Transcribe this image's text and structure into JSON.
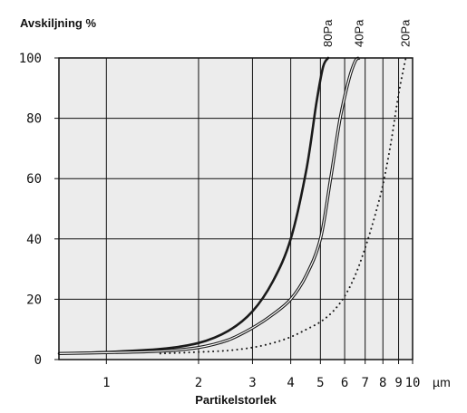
{
  "chart_data": {
    "type": "line",
    "ylabel": "Avskiljning %",
    "xlabel": "Partikelstorlek",
    "x_unit": "µm",
    "x_scale": "log",
    "xlim": [
      0.7,
      10
    ],
    "ylim": [
      0,
      100
    ],
    "x_ticks": [
      1,
      2,
      3,
      4,
      5,
      6,
      7,
      8,
      9,
      10
    ],
    "x_tick_labels": [
      "1",
      "2",
      "3",
      "4",
      "5",
      "6",
      "7",
      "8",
      "9",
      "10"
    ],
    "y_ticks": [
      0,
      20,
      40,
      60,
      80,
      100
    ],
    "y_tick_labels": [
      "0",
      "20",
      "40",
      "60",
      "80",
      "100"
    ],
    "grid": true,
    "plot_background": "#ececec",
    "series": [
      {
        "name": "80Pa",
        "style": "thick",
        "color": "#1a1a1a",
        "points": [
          [
            0.7,
            2
          ],
          [
            1,
            2.5
          ],
          [
            1.5,
            3.5
          ],
          [
            2,
            5.5
          ],
          [
            2.5,
            9.5
          ],
          [
            3,
            16
          ],
          [
            3.5,
            26
          ],
          [
            4,
            40
          ],
          [
            4.5,
            63
          ],
          [
            4.85,
            85
          ],
          [
            5.1,
            97
          ],
          [
            5.3,
            100
          ]
        ]
      },
      {
        "name": "40Pa",
        "style": "double",
        "color": "#1a1a1a",
        "points": [
          [
            0.7,
            2
          ],
          [
            1,
            2.3
          ],
          [
            1.5,
            2.8
          ],
          [
            2,
            4
          ],
          [
            2.5,
            6.5
          ],
          [
            3,
            10.5
          ],
          [
            3.5,
            15
          ],
          [
            4,
            20
          ],
          [
            4.5,
            28
          ],
          [
            5,
            40
          ],
          [
            5.4,
            60
          ],
          [
            5.8,
            80
          ],
          [
            6.2,
            93
          ],
          [
            6.5,
            99
          ],
          [
            6.7,
            100
          ]
        ]
      },
      {
        "name": "20Pa",
        "style": "dotted",
        "color": "#1a1a1a",
        "points": [
          [
            1.5,
            2
          ],
          [
            2,
            2.5
          ],
          [
            2.5,
            3
          ],
          [
            3,
            4
          ],
          [
            3.5,
            5.5
          ],
          [
            4,
            7.5
          ],
          [
            4.5,
            10
          ],
          [
            5,
            12.5
          ],
          [
            5.5,
            16
          ],
          [
            6,
            21
          ],
          [
            6.5,
            28
          ],
          [
            7,
            37
          ],
          [
            7.5,
            47
          ],
          [
            8,
            58
          ],
          [
            8.5,
            72
          ],
          [
            9,
            88
          ],
          [
            9.5,
            100
          ]
        ]
      }
    ]
  }
}
